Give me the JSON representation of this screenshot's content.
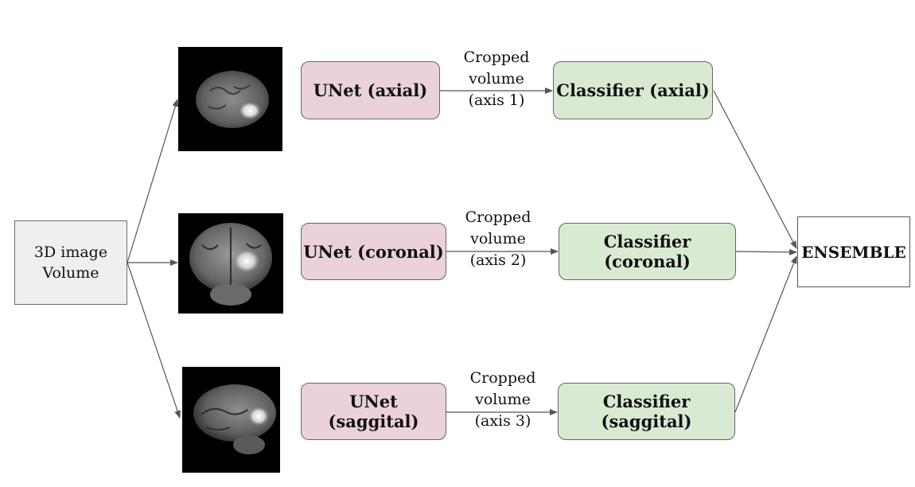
{
  "input": {
    "line1": "3D image",
    "line2": "Volume"
  },
  "branches": [
    {
      "unet": "UNet (axial)",
      "edge": [
        "Cropped",
        "volume",
        "(axis 1)"
      ],
      "classifier": "Classifier (axial)"
    },
    {
      "unet": "UNet (coronal)",
      "edge": [
        "Cropped",
        "volume",
        "(axis 2)"
      ],
      "classifier": "Classifier (coronal)"
    },
    {
      "unet": "UNet (saggital)",
      "edge": [
        "Cropped",
        "volume",
        "(axis 3)"
      ],
      "classifier": "Classifier (saggital)"
    }
  ],
  "output": {
    "label": "ENSEMBLE"
  },
  "colors": {
    "unet_fill": "#ead1dc",
    "classifier_fill": "#d9ead3",
    "input_fill": "#efefef",
    "arrow": "#555555"
  }
}
